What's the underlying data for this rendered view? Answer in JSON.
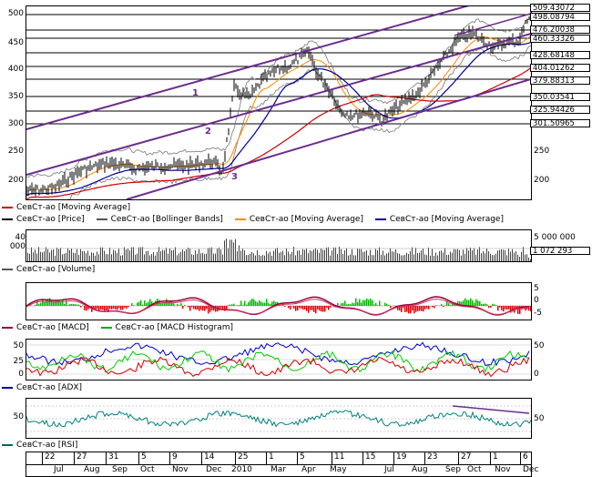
{
  "price_panel": {
    "y_left": [
      "500",
      "450",
      "400",
      "350",
      "300",
      "250",
      "200"
    ],
    "y_right": [
      "250",
      "200"
    ],
    "price_levels": [
      "509.43072",
      "498.08794",
      "476.20038",
      "460.33326",
      "428.68148",
      "404.01262",
      "379.88313",
      "350.03541",
      "325.94426",
      "301.50965"
    ],
    "wave_labels": [
      "1",
      "2",
      "3"
    ],
    "legend": [
      {
        "label": "СевСт-ао [Moving Average]",
        "color": "#cc0000"
      },
      {
        "label": "СевСт-ао [Price]",
        "color": "#000000"
      },
      {
        "label": "СевСт-ао [Bollinger Bands]",
        "color": "#555555"
      },
      {
        "label": "СевСт-ао [Moving Average]",
        "color": "#ff8800"
      },
      {
        "label": "СевСт-ао [Moving Average]",
        "color": "#000099"
      }
    ]
  },
  "volume_panel": {
    "y_left": "40 000",
    "y_right": [
      "5 000 000",
      "1 072 293"
    ],
    "legend": [
      {
        "label": "СевСт-ао [Volume]",
        "color": "#555555"
      }
    ]
  },
  "macd_panel": {
    "y_right": [
      "5",
      "0",
      "-5"
    ],
    "legend": [
      {
        "label": "СевСт-ао [MACD]",
        "color": "#990033"
      },
      {
        "label": "СевСт-ао [MACD Histogram]",
        "color": "#00aa00"
      }
    ]
  },
  "adx_panel": {
    "y_left": [
      "50",
      "25",
      "0"
    ],
    "y_right": [
      "50",
      "0"
    ],
    "legend": [
      {
        "label": "СевСт-ао [ADX]",
        "color": "#000099"
      }
    ]
  },
  "rsi_panel": {
    "y_left": "50",
    "y_right": "50",
    "legend": [
      {
        "label": "СевСт-ао [RSI]",
        "color": "#006666"
      }
    ]
  },
  "time_axis": {
    "days": [
      "22",
      "27",
      "31",
      "5",
      "9",
      "14",
      "25",
      "1",
      "5",
      "11",
      "15",
      "19",
      "23",
      "27",
      "1",
      "6"
    ],
    "months": [
      "Jul",
      "Aug",
      "Sep",
      "Oct",
      "Nov",
      "Dec",
      "2010",
      "Mar",
      "Apr",
      "May",
      "Jul",
      "Aug",
      "Sep",
      "Oct",
      "Nov",
      "Dec"
    ]
  },
  "colors": {
    "channel": "#6b2c91",
    "support": "#000000",
    "ma_red": "#cc0000",
    "ma_orange": "#ff8800",
    "ma_blue": "#000099",
    "macd": "#990033",
    "hist_pos": "#00bb00",
    "hist_neg": "#dd0000",
    "adx_blue": "#0000cc",
    "adx_green": "#00cc00",
    "adx_red": "#cc0000",
    "rsi": "#008080"
  }
}
